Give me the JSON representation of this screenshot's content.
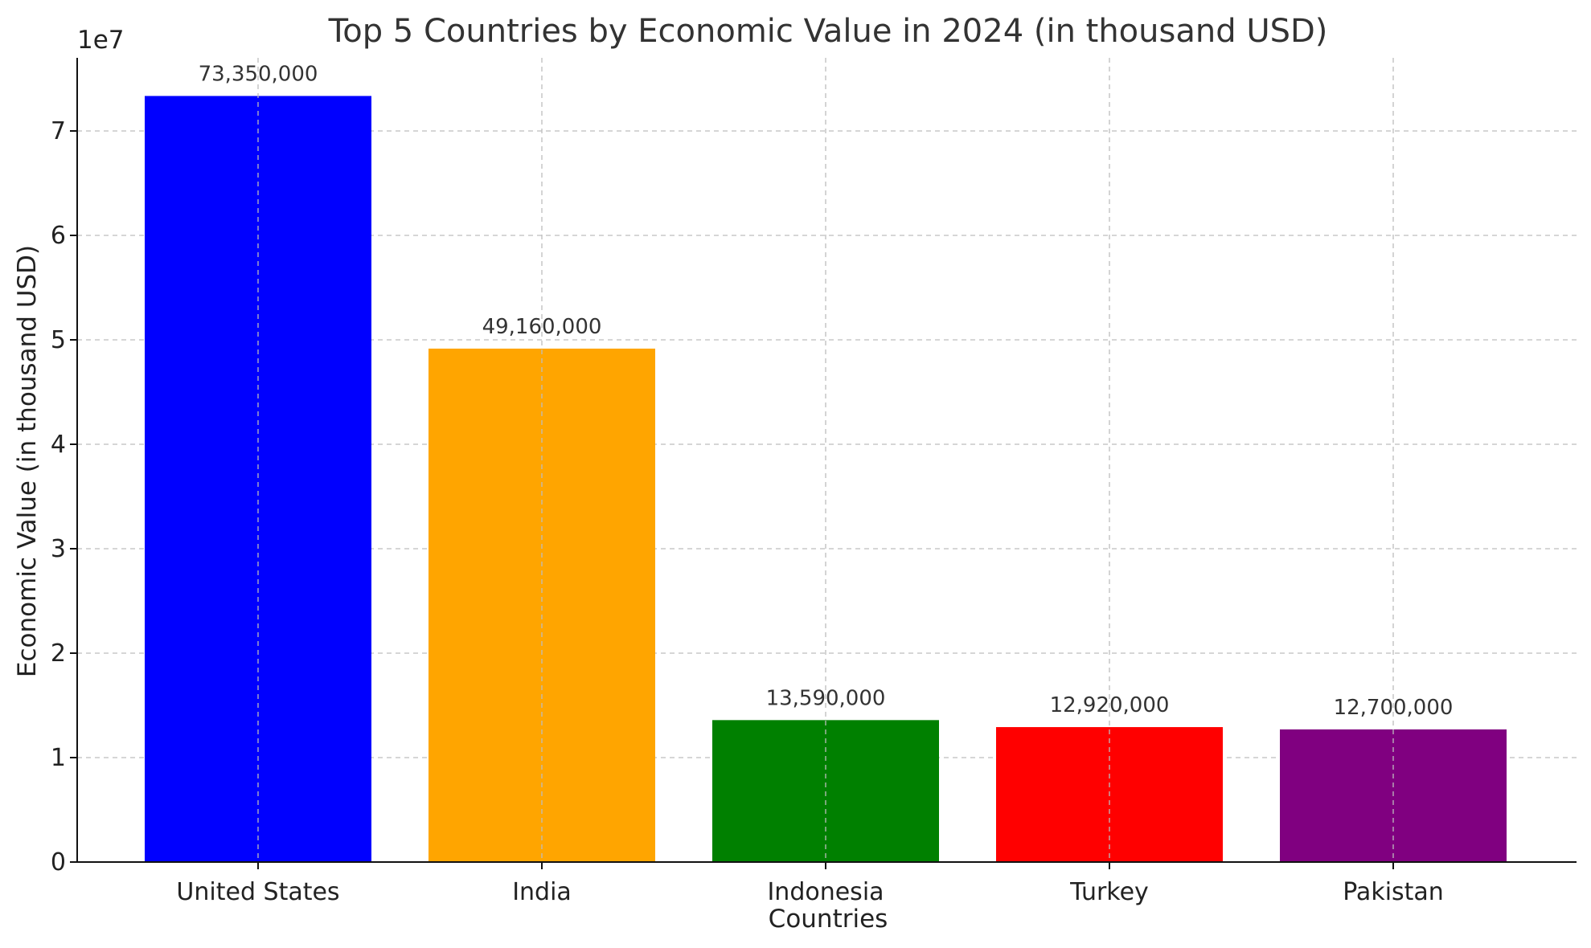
{
  "chart_data": {
    "type": "bar",
    "title": "Top 5 Countries by Economic Value in 2024 (in thousand USD)",
    "xlabel": "Countries",
    "ylabel": "Economic Value (in thousand USD)",
    "y_offset_label": "1e7",
    "categories": [
      "United States",
      "India",
      "Indonesia",
      "Turkey",
      "Pakistan"
    ],
    "values": [
      73350000,
      49160000,
      13590000,
      12920000,
      12700000
    ],
    "value_labels": [
      "73,350,000",
      "49,160,000",
      "13,590,000",
      "12,920,000",
      "12,700,000"
    ],
    "colors": [
      "#0000ff",
      "#ffa500",
      "#008000",
      "#ff0000",
      "#800080"
    ],
    "ylim": [
      0,
      77000000
    ],
    "yticks": [
      0,
      10000000,
      20000000,
      30000000,
      40000000,
      50000000,
      60000000,
      70000000
    ],
    "ytick_labels": [
      "0",
      "1",
      "2",
      "3",
      "4",
      "5",
      "6",
      "7"
    ],
    "grid": true
  }
}
